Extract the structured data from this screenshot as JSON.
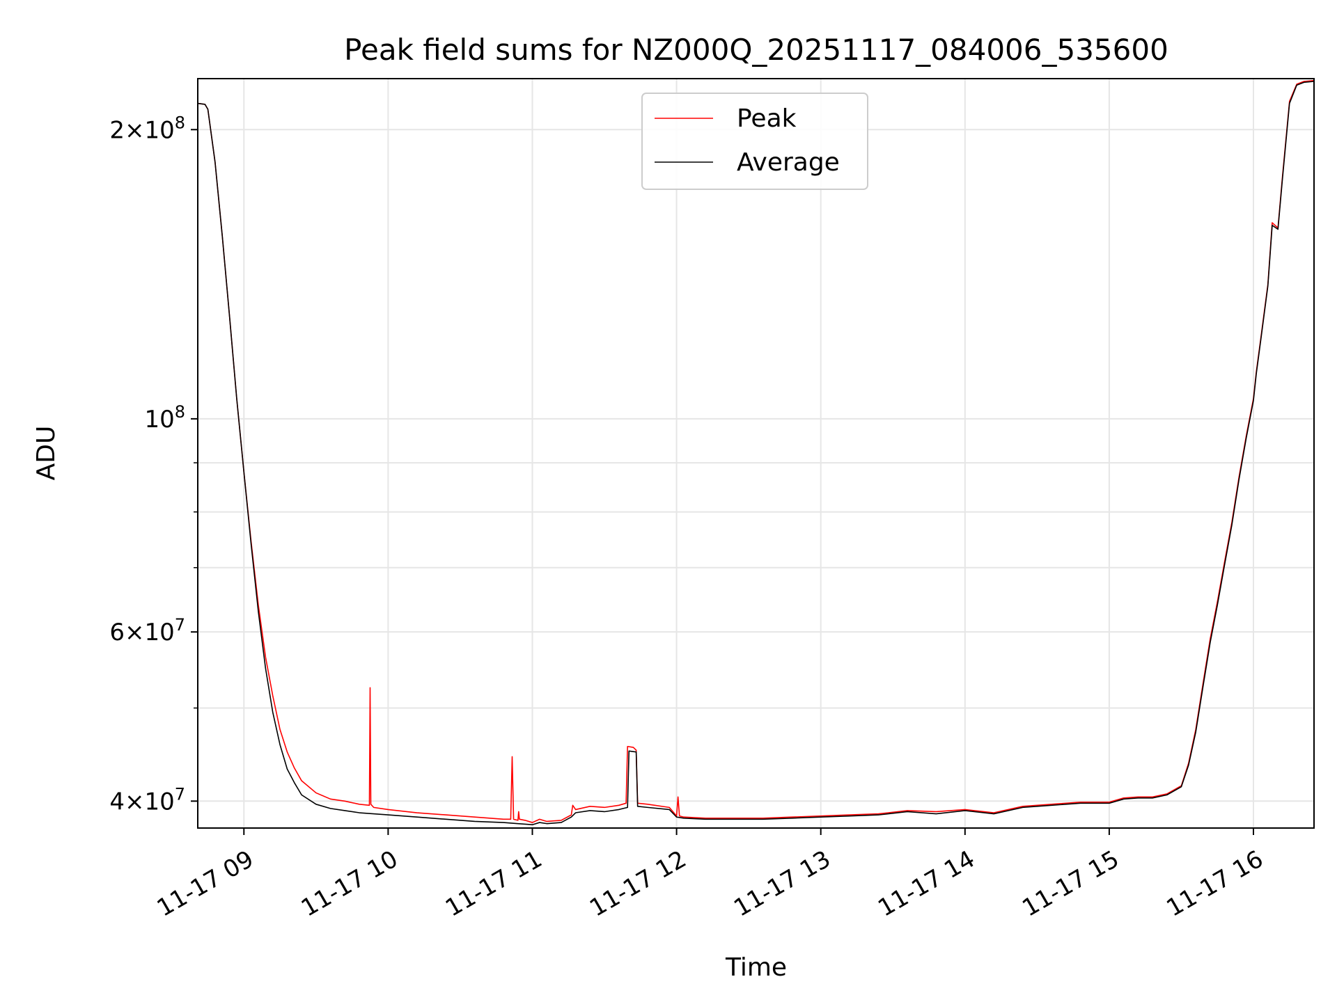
{
  "chart_data": {
    "type": "line",
    "title": "Peak field sums for NZ000Q_20251117_084006_535600",
    "xlabel": "Time",
    "ylabel": "ADU",
    "yscale": "log",
    "xlim": [
      8.68,
      16.42
    ],
    "ylim": [
      37500000,
      226000000
    ],
    "grid": true,
    "legend_position": "upper center",
    "x_ticks": [
      {
        "value": 9,
        "label": "11-17 09"
      },
      {
        "value": 10,
        "label": "11-17 10"
      },
      {
        "value": 11,
        "label": "11-17 11"
      },
      {
        "value": 12,
        "label": "11-17 12"
      },
      {
        "value": 13,
        "label": "11-17 13"
      },
      {
        "value": 14,
        "label": "11-17 14"
      },
      {
        "value": 15,
        "label": "11-17 15"
      },
      {
        "value": 16,
        "label": "11-17 16"
      }
    ],
    "y_ticks": [
      {
        "value": 40000000,
        "mantissa": "4",
        "exp": "7"
      },
      {
        "value": 60000000,
        "mantissa": "6",
        "exp": "7"
      },
      {
        "value": 100000000,
        "mantissa": "",
        "exp": "8"
      },
      {
        "value": 200000000,
        "mantissa": "2",
        "exp": "8"
      }
    ],
    "y_minor_ticks": [
      50000000,
      70000000,
      80000000,
      90000000
    ],
    "series": [
      {
        "name": "Peak",
        "color": "#ff0000",
        "x": [
          8.68,
          8.73,
          8.75,
          8.8,
          8.85,
          8.9,
          8.95,
          9.0,
          9.05,
          9.1,
          9.15,
          9.2,
          9.25,
          9.3,
          9.35,
          9.4,
          9.5,
          9.6,
          9.7,
          9.8,
          9.87,
          9.875,
          9.88,
          9.9,
          10.0,
          10.2,
          10.4,
          10.6,
          10.8,
          10.85,
          10.86,
          10.87,
          10.9,
          10.905,
          10.91,
          10.95,
          11.0,
          11.05,
          11.1,
          11.2,
          11.27,
          11.28,
          11.3,
          11.4,
          11.5,
          11.6,
          11.65,
          11.66,
          11.7,
          11.72,
          11.73,
          11.8,
          11.95,
          12.0,
          12.01,
          12.02,
          12.05,
          12.2,
          12.4,
          12.6,
          12.8,
          13.0,
          13.2,
          13.4,
          13.6,
          13.8,
          14.0,
          14.2,
          14.4,
          14.6,
          14.8,
          15.0,
          15.1,
          15.2,
          15.3,
          15.4,
          15.5,
          15.55,
          15.6,
          15.65,
          15.7,
          15.75,
          15.8,
          15.85,
          15.9,
          15.95,
          16.0,
          16.02,
          16.05,
          16.1,
          16.13,
          16.17,
          16.2,
          16.25,
          16.3,
          16.35,
          16.42
        ],
        "y": [
          213000000,
          212500000,
          210000000,
          185000000,
          155000000,
          128000000,
          105000000,
          88000000,
          74500000,
          64000000,
          56500000,
          51500000,
          47500000,
          45000000,
          43300000,
          42000000,
          40800000,
          40200000,
          40000000,
          39700000,
          39600000,
          52500000,
          39700000,
          39400000,
          39200000,
          38900000,
          38700000,
          38500000,
          38300000,
          38300000,
          44500000,
          38300000,
          38200000,
          39000000,
          38300000,
          38200000,
          38000000,
          38300000,
          38100000,
          38200000,
          38700000,
          39600000,
          39200000,
          39500000,
          39400000,
          39600000,
          39800000,
          45600000,
          45500000,
          45200000,
          39800000,
          39700000,
          39400000,
          38600000,
          40400000,
          38600000,
          38500000,
          38400000,
          38400000,
          38400000,
          38500000,
          38600000,
          38700000,
          38800000,
          39100000,
          39000000,
          39200000,
          38900000,
          39500000,
          39700000,
          39900000,
          39900000,
          40300000,
          40400000,
          40400000,
          40700000,
          41500000,
          43800000,
          47500000,
          53000000,
          59000000,
          64500000,
          71000000,
          78000000,
          87000000,
          96000000,
          105000000,
          112000000,
          121000000,
          138000000,
          160000000,
          158000000,
          178000000,
          214000000,
          223000000,
          224500000,
          225000000
        ]
      },
      {
        "name": "Average",
        "color": "#000000",
        "x": [
          8.68,
          8.73,
          8.75,
          8.8,
          8.85,
          8.9,
          8.95,
          9.0,
          9.05,
          9.1,
          9.15,
          9.2,
          9.25,
          9.3,
          9.35,
          9.4,
          9.5,
          9.6,
          9.7,
          9.8,
          9.9,
          10.0,
          10.2,
          10.4,
          10.6,
          10.8,
          10.9,
          11.0,
          11.05,
          11.1,
          11.2,
          11.27,
          11.3,
          11.4,
          11.5,
          11.6,
          11.66,
          11.67,
          11.72,
          11.73,
          11.8,
          11.95,
          12.0,
          12.05,
          12.2,
          12.4,
          12.6,
          12.8,
          13.0,
          13.2,
          13.4,
          13.6,
          13.8,
          14.0,
          14.2,
          14.4,
          14.6,
          14.8,
          15.0,
          15.1,
          15.2,
          15.3,
          15.4,
          15.5,
          15.55,
          15.6,
          15.65,
          15.7,
          15.75,
          15.8,
          15.85,
          15.9,
          15.95,
          16.0,
          16.02,
          16.05,
          16.1,
          16.13,
          16.17,
          16.2,
          16.25,
          16.3,
          16.35,
          16.42
        ],
        "y": [
          213000000,
          212500000,
          210000000,
          185000000,
          155000000,
          128000000,
          105000000,
          88000000,
          74000000,
          63000000,
          55000000,
          49500000,
          45800000,
          43200000,
          41800000,
          40600000,
          39700000,
          39300000,
          39100000,
          38900000,
          38800000,
          38700000,
          38500000,
          38300000,
          38100000,
          38000000,
          37900000,
          37800000,
          38000000,
          37900000,
          38000000,
          38500000,
          38900000,
          39100000,
          39000000,
          39200000,
          39400000,
          45100000,
          45000000,
          39500000,
          39400000,
          39200000,
          38500000,
          38400000,
          38300000,
          38300000,
          38300000,
          38400000,
          38500000,
          38600000,
          38700000,
          39000000,
          38800000,
          39100000,
          38800000,
          39400000,
          39600000,
          39800000,
          39800000,
          40200000,
          40300000,
          40300000,
          40600000,
          41400000,
          43600000,
          47200000,
          52600000,
          58500000,
          64000000,
          70500000,
          77500000,
          86500000,
          95500000,
          104500000,
          111500000,
          120500000,
          137500000,
          159000000,
          157500000,
          177000000,
          213000000,
          222500000,
          224000000,
          224500000
        ]
      }
    ]
  }
}
